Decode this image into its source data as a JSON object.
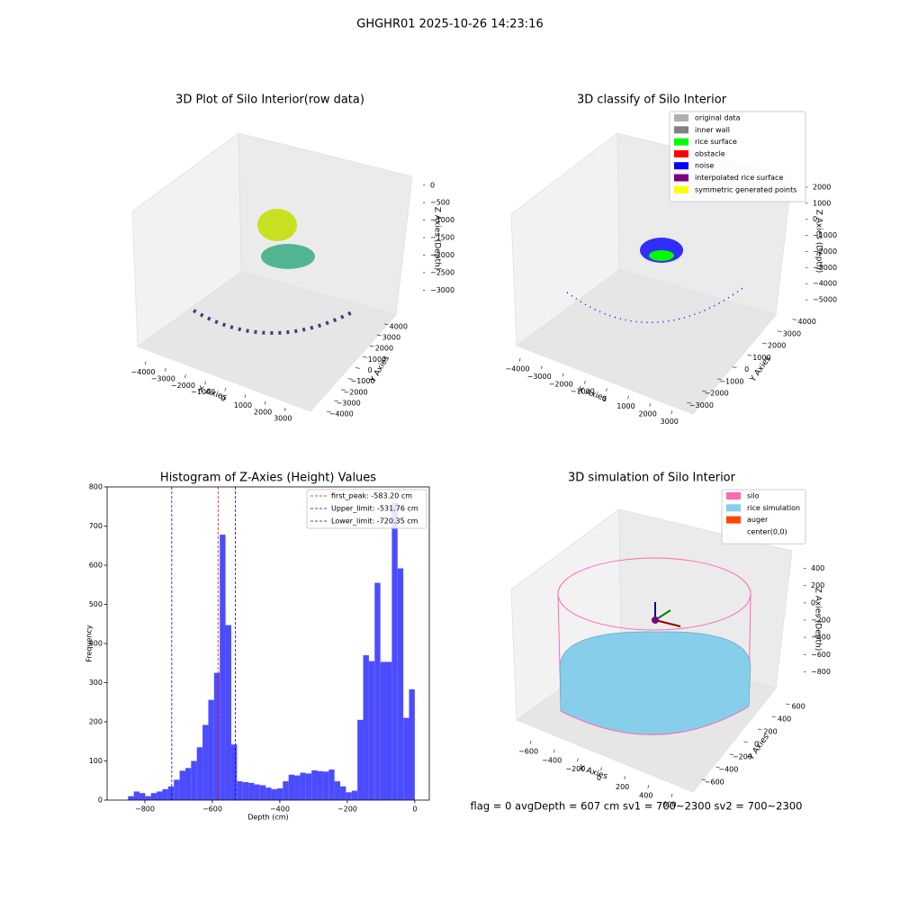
{
  "title": "GHGHR01 2025-10-26 14:23:16",
  "footer": "flag = 0     avgDepth = 607 cm  sv1 = 700~2300  sv2 = 700~2300",
  "chart_data": [
    {
      "type": "scatter3d",
      "title": "3D Plot of Silo Interior(row data)",
      "xlabel": "X Axies",
      "ylabel": "Y Axies",
      "zlabel": "Z Axies (Depth)",
      "xlim": [
        -4500,
        3800
      ],
      "ylim": [
        -4400,
        4400
      ],
      "zlim": [
        -3300,
        200
      ],
      "xticks": [
        {
          "value": -4000,
          "label": "−4000"
        },
        {
          "value": -3000,
          "label": "−3000"
        },
        {
          "value": -2000,
          "label": "−2000"
        },
        {
          "value": -1000,
          "label": "−1000"
        },
        0,
        1000,
        2000,
        3000
      ],
      "yticks": [
        {
          "value": -4000,
          "label": "−4000"
        },
        {
          "value": -3000,
          "label": "−3000"
        },
        {
          "value": -2000,
          "label": "−2000"
        },
        {
          "value": -1000,
          "label": "−1000"
        },
        0,
        1000,
        2000,
        3000,
        4000
      ],
      "zticks": [
        0,
        {
          "value": -500,
          "label": "−500"
        },
        {
          "value": -1000,
          "label": "−1000"
        },
        {
          "value": -1500,
          "label": "−1500"
        },
        {
          "value": -2000,
          "label": "−2000"
        },
        {
          "value": -2500,
          "label": "−2500"
        },
        {
          "value": -3000,
          "label": "−3000"
        }
      ]
    },
    {
      "type": "scatter3d",
      "title": "3D classify of Silo Interior",
      "xlabel": "X Axies",
      "ylabel": "Y Axies",
      "zlabel": "Z Axies (Depth)",
      "xlim": [
        -4500,
        3800
      ],
      "ylim": [
        -3500,
        4500
      ],
      "zlim": [
        -5500,
        2500
      ],
      "xticks": [
        {
          "value": -4000,
          "label": "−4000"
        },
        {
          "value": -3000,
          "label": "−3000"
        },
        {
          "value": -2000,
          "label": "−2000"
        },
        {
          "value": -1000,
          "label": "−1000"
        },
        0,
        1000,
        2000,
        3000
      ],
      "yticks": [
        {
          "value": -3000,
          "label": "−3000"
        },
        {
          "value": -2000,
          "label": "−2000"
        },
        {
          "value": -1000,
          "label": "−1000"
        },
        0,
        1000,
        2000,
        3000,
        4000
      ],
      "zticks": [
        2000,
        1000,
        0,
        {
          "value": -1000,
          "label": "−1000"
        },
        {
          "value": -2000,
          "label": "−2000"
        },
        {
          "value": -3000,
          "label": "−3000"
        },
        {
          "value": -4000,
          "label": "−4000"
        },
        {
          "value": -5000,
          "label": "−5000"
        }
      ],
      "legend": [
        {
          "name": "original data",
          "color": "#b0b0b0"
        },
        {
          "name": "inner wall",
          "color": "#808080"
        },
        {
          "name": "rice surface",
          "color": "#00ff00"
        },
        {
          "name": "obstacle",
          "color": "#ff0000"
        },
        {
          "name": "noise",
          "color": "#0000ff"
        },
        {
          "name": "interpolated rice surface",
          "color": "#800080"
        },
        {
          "name": "symmetric generated points",
          "color": "#ffff00"
        }
      ]
    },
    {
      "type": "histogram",
      "title": "Histogram of Z-Axies (Height) Values",
      "xlabel": "Depth (cm)",
      "ylabel": "Frequency",
      "color": "#4c4cff",
      "bins": [
        -850,
        -833,
        -816,
        -799,
        -782,
        -765,
        -748,
        -731,
        -714,
        -697,
        -680,
        -663,
        -646,
        -629,
        -612,
        -595,
        -578,
        -561,
        -544,
        -527,
        -510,
        -493,
        -476,
        -459,
        -442,
        -425,
        -408,
        -391,
        -374,
        -357,
        -340,
        -323,
        -306,
        -289,
        -272,
        -255,
        -238,
        -221,
        -204,
        -187,
        -170,
        -153,
        -136,
        -119,
        -102,
        -85,
        -68,
        -51,
        -34,
        -17,
        0
      ],
      "values": [
        10,
        22,
        18,
        10,
        18,
        22,
        28,
        35,
        52,
        75,
        82,
        100,
        135,
        192,
        256,
        325,
        678,
        447,
        142,
        48,
        46,
        44,
        40,
        38,
        32,
        28,
        30,
        48,
        65,
        63,
        70,
        68,
        76,
        74,
        73,
        78,
        48,
        35,
        20,
        24,
        205,
        370,
        355,
        555,
        353,
        353,
        760,
        592,
        210,
        283
      ],
      "xlim": [
        -912,
        43
      ],
      "ylim": [
        0,
        800
      ],
      "xticks": [
        {
          "value": -800,
          "label": "−800"
        },
        {
          "value": -600,
          "label": "−600"
        },
        {
          "value": -400,
          "label": "−400"
        },
        {
          "value": -200,
          "label": "−200"
        },
        0
      ],
      "yticks": [
        0,
        100,
        200,
        300,
        400,
        500,
        600,
        700,
        800
      ],
      "vlines": [
        {
          "name": "first_peak: -583.20 cm",
          "value": -583.2,
          "color": "#ff0000"
        },
        {
          "name": "Upper_limit: -531.76 cm",
          "value": -531.76,
          "color": "#0000ff"
        },
        {
          "name": "Lower_limit: -720.35 cm",
          "value": -720.35,
          "color": "#0000ff"
        }
      ]
    },
    {
      "type": "surface3d",
      "title": "3D simulation of Silo Interior",
      "xlabel": "X Axies",
      "ylabel": "Y Axies",
      "zlabel": "Z Axies (Depth)",
      "xlim": [
        -700,
        700
      ],
      "ylim": [
        -700,
        700
      ],
      "zlim": [
        -900,
        500
      ],
      "xticks": [
        {
          "value": -600,
          "label": "−600"
        },
        {
          "value": -400,
          "label": "−400"
        },
        {
          "value": -200,
          "label": "−200"
        },
        0,
        200,
        400,
        600
      ],
      "yticks": [
        {
          "value": -600,
          "label": "−600"
        },
        {
          "value": -400,
          "label": "−400"
        },
        {
          "value": -200,
          "label": "−200"
        },
        0,
        200,
        400,
        600
      ],
      "zticks": [
        400,
        200,
        0,
        {
          "value": -200,
          "label": "−200"
        },
        {
          "value": -400,
          "label": "−400"
        },
        {
          "value": -600,
          "label": "−600"
        },
        {
          "value": -800,
          "label": "−800"
        }
      ],
      "legend": [
        {
          "name": "silo",
          "color": "#ff69b4"
        },
        {
          "name": "rice simulation",
          "color": "#87ceeb"
        },
        {
          "name": "auger",
          "color": "#ff4500"
        },
        {
          "name": "center(0,0)"
        }
      ]
    }
  ]
}
